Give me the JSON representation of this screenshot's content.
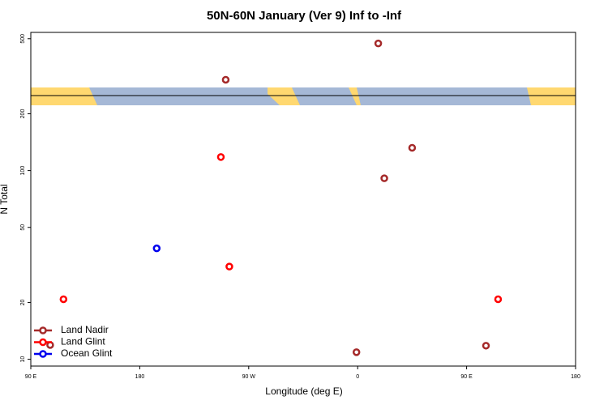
{
  "chart_data": {
    "type": "scatter",
    "title": "50N-60N January (Ver 9)   Inf to -Inf",
    "xlabel": "Longitude (deg E)",
    "ylabel": "N Total",
    "xlim": [
      90,
      540
    ],
    "ylim": [
      9.2,
      540
    ],
    "ylog": true,
    "legend": "lower left",
    "xticks": [
      {
        "value": 90,
        "label": "90 E"
      },
      {
        "value": 180,
        "label": "180"
      },
      {
        "value": 270,
        "label": "90 W"
      },
      {
        "value": 360,
        "label": "0"
      },
      {
        "value": 450,
        "label": "90 E"
      },
      {
        "value": 540,
        "label": "180"
      }
    ],
    "yticks": [
      10,
      20,
      50,
      100,
      200,
      500
    ],
    "series": [
      {
        "name": "Land Nadir",
        "color": "#a52a2a",
        "x": [
          377,
          251,
          405,
          382,
          106,
          359,
          466
        ],
        "values": [
          472,
          303,
          132,
          91,
          11.9,
          10.9,
          11.8
        ]
      },
      {
        "name": "Land Glint",
        "color": "#ff0000",
        "x": [
          247,
          254,
          117,
          476
        ],
        "values": [
          118,
          31,
          20.8,
          20.8
        ]
      },
      {
        "name": "Ocean Glint",
        "color": "#0000ee",
        "x": [
          194
        ],
        "values": [
          38.7
        ]
      }
    ]
  }
}
